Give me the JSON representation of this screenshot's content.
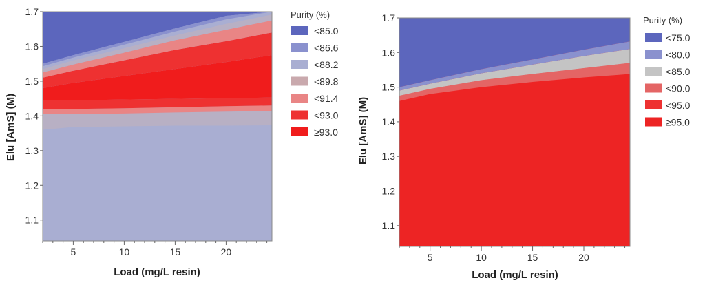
{
  "chart_data": [
    {
      "type": "contour",
      "title": "",
      "xlabel": "Load (mg/L resin)",
      "ylabel": "Elu [AmS] (M)",
      "xlim": [
        2,
        24.5
      ],
      "ylim": [
        1.04,
        1.7
      ],
      "xticks": [
        5,
        10,
        15,
        20
      ],
      "xtick_labels": [
        "5",
        "10",
        "15",
        "20"
      ],
      "yticks": [
        1.1,
        1.2,
        1.3,
        1.4,
        1.5,
        1.6,
        1.7
      ],
      "ytick_labels": [
        "1.1",
        "1.2",
        "1.3",
        "1.4",
        "1.5",
        "1.6",
        "1.7"
      ],
      "x_samples": [
        2,
        5,
        10,
        15,
        20,
        24.5
      ],
      "base_color": "#a9aed2",
      "top_color": "#5c66bd",
      "bands": [
        {
          "color": "#b8b0c4",
          "lower": [
            1.36,
            1.368,
            1.37,
            1.372,
            1.372,
            1.373
          ],
          "upper": [
            1.405,
            1.405,
            1.407,
            1.41,
            1.412,
            1.414
          ]
        },
        {
          "color": "#e98585",
          "lower": [
            1.405,
            1.405,
            1.407,
            1.41,
            1.412,
            1.414
          ],
          "upper": [
            1.42,
            1.42,
            1.422,
            1.425,
            1.428,
            1.43
          ]
        },
        {
          "color": "#ee3131",
          "lower": [
            1.42,
            1.42,
            1.422,
            1.425,
            1.428,
            1.43
          ],
          "upper": [
            1.445,
            1.445,
            1.447,
            1.449,
            1.451,
            1.453
          ]
        },
        {
          "color": "#f01c1c",
          "lower": [
            1.445,
            1.445,
            1.447,
            1.449,
            1.451,
            1.453
          ],
          "upper": [
            1.48,
            1.495,
            1.515,
            1.535,
            1.555,
            1.575
          ]
        },
        {
          "color": "#ee3131",
          "lower": [
            1.48,
            1.495,
            1.515,
            1.535,
            1.555,
            1.575
          ],
          "upper": [
            1.51,
            1.53,
            1.56,
            1.59,
            1.615,
            1.64
          ]
        },
        {
          "color": "#e98585",
          "lower": [
            1.51,
            1.53,
            1.56,
            1.59,
            1.615,
            1.64
          ],
          "upper": [
            1.525,
            1.548,
            1.582,
            1.618,
            1.648,
            1.675
          ]
        },
        {
          "color": "#b8b0c4",
          "lower": [
            1.525,
            1.548,
            1.582,
            1.618,
            1.648,
            1.675
          ],
          "upper": [
            1.535,
            1.56,
            1.595,
            1.632,
            1.665,
            1.692
          ]
        },
        {
          "color": "#a9aed2",
          "lower": [
            1.535,
            1.56,
            1.595,
            1.632,
            1.665,
            1.692
          ],
          "upper": [
            1.543,
            1.568,
            1.605,
            1.643,
            1.678,
            1.705
          ]
        },
        {
          "color": "#8a91ce",
          "lower": [
            1.543,
            1.568,
            1.605,
            1.643,
            1.678,
            1.705
          ],
          "upper": [
            1.55,
            1.575,
            1.613,
            1.652,
            1.688,
            1.715
          ]
        }
      ],
      "legend": {
        "title": "Purity (%)",
        "position": "right",
        "entries": [
          {
            "label": "<85.0",
            "color": "#5c66bd"
          },
          {
            "label": "<86.6",
            "color": "#8a91ce"
          },
          {
            "label": "<88.2",
            "color": "#a9aed2"
          },
          {
            "label": "<89.8",
            "color": "#c9a9ad"
          },
          {
            "label": "<91.4",
            "color": "#e98585"
          },
          {
            "label": "<93.0",
            "color": "#ee3131"
          },
          {
            "label": "≥93.0",
            "color": "#f01c1c"
          }
        ]
      }
    },
    {
      "type": "contour",
      "title": "",
      "xlabel": "Load (mg/L resin)",
      "ylabel": "Elu [AmS] (M)",
      "xlim": [
        2,
        24.5
      ],
      "ylim": [
        1.04,
        1.7
      ],
      "xticks": [
        5,
        10,
        15,
        20
      ],
      "xtick_labels": [
        "5",
        "10",
        "15",
        "20"
      ],
      "yticks": [
        1.1,
        1.2,
        1.3,
        1.4,
        1.5,
        1.6,
        1.7
      ],
      "ytick_labels": [
        "1.1",
        "1.2",
        "1.3",
        "1.4",
        "1.5",
        "1.6",
        "1.7"
      ],
      "x_samples": [
        2,
        5,
        10,
        15,
        20,
        24.5
      ],
      "base_color": "#ed2424",
      "top_color": "#5c66bd",
      "bands": [
        {
          "color": "#e46565",
          "lower": [
            1.46,
            1.48,
            1.5,
            1.515,
            1.528,
            1.538
          ],
          "upper": [
            1.475,
            1.495,
            1.52,
            1.538,
            1.555,
            1.57
          ]
        },
        {
          "color": "#c4c4c4",
          "lower": [
            1.475,
            1.495,
            1.52,
            1.538,
            1.555,
            1.57
          ],
          "upper": [
            1.49,
            1.51,
            1.54,
            1.565,
            1.59,
            1.61
          ]
        },
        {
          "color": "#8a91ce",
          "lower": [
            1.49,
            1.51,
            1.54,
            1.565,
            1.59,
            1.61
          ],
          "upper": [
            1.5,
            1.52,
            1.552,
            1.58,
            1.608,
            1.632
          ]
        }
      ],
      "legend": {
        "title": "Purity (%)",
        "position": "right",
        "entries": [
          {
            "label": "<75.0",
            "color": "#5c66bd"
          },
          {
            "label": "<80.0",
            "color": "#8a91ce"
          },
          {
            "label": "<85.0",
            "color": "#c4c4c4"
          },
          {
            "label": "<90.0",
            "color": "#e46565"
          },
          {
            "label": "<95.0",
            "color": "#ee3131"
          },
          {
            "label": "≥95.0",
            "color": "#ed2424"
          }
        ]
      }
    }
  ]
}
